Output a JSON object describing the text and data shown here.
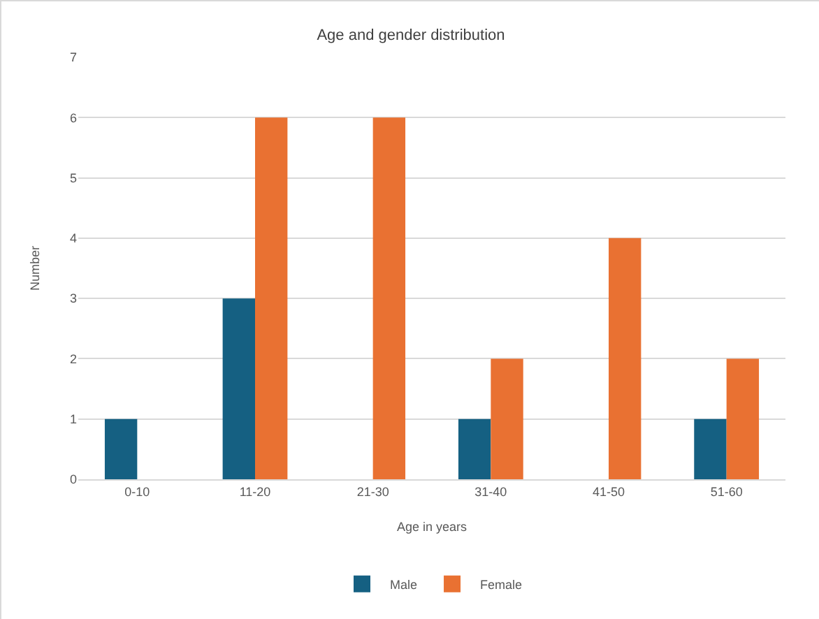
{
  "chart_data": {
    "type": "bar",
    "title": "Age and gender distribution",
    "xlabel": "Age in years",
    "ylabel": "Number",
    "categories": [
      "0-10",
      "11-20",
      "21-30",
      "31-40",
      "41-50",
      "51-60"
    ],
    "series": [
      {
        "name": "Male",
        "color": "#156082",
        "values": [
          1,
          3,
          0,
          1,
          0,
          1
        ]
      },
      {
        "name": "Female",
        "color": "#e97132",
        "values": [
          0,
          6,
          6,
          2,
          4,
          2
        ]
      }
    ],
    "ylim": [
      0,
      7
    ],
    "yticks": [
      0,
      1,
      2,
      3,
      4,
      5,
      6,
      7
    ],
    "grid": "y",
    "legend": "bottom"
  }
}
